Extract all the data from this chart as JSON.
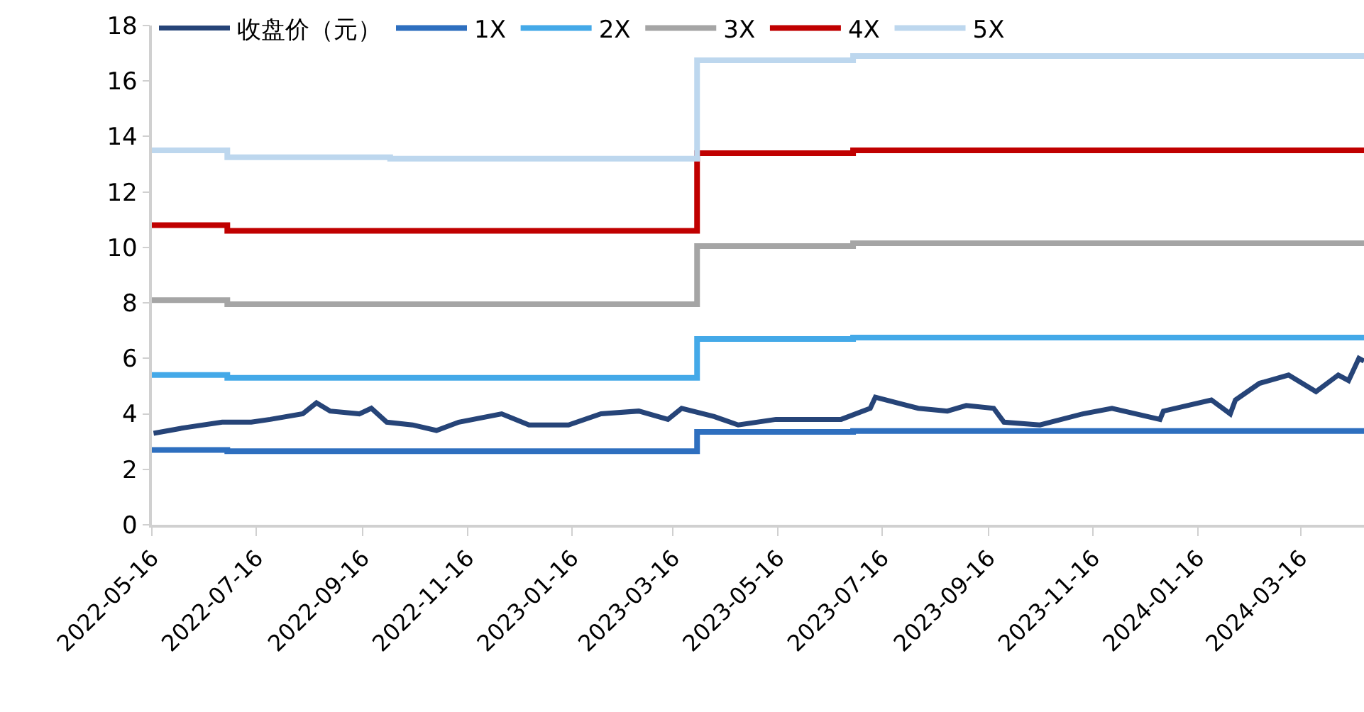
{
  "chart_data": {
    "type": "line",
    "series": [
      {
        "name": "收盘价（元）",
        "color": "#264478",
        "x": [
          "2022-05-17",
          "2022-06-04",
          "2022-06-26",
          "2022-07-13",
          "2022-07-24",
          "2022-08-12",
          "2022-08-20",
          "2022-08-28",
          "2022-09-14",
          "2022-09-21",
          "2022-09-30",
          "2022-10-15",
          "2022-10-29",
          "2022-11-11",
          "2022-12-06",
          "2022-12-22",
          "2023-01-14",
          "2023-02-02",
          "2023-02-24",
          "2023-03-13",
          "2023-03-21",
          "2023-04-09",
          "2023-04-23",
          "2023-05-15",
          "2023-06-22",
          "2023-07-09",
          "2023-07-12",
          "2023-08-06",
          "2023-08-23",
          "2023-09-03",
          "2023-09-19",
          "2023-09-25",
          "2023-10-16",
          "2023-11-10",
          "2023-11-27",
          "2023-12-25",
          "2023-12-27",
          "2024-01-24",
          "2024-02-04",
          "2024-02-07",
          "2024-02-21",
          "2024-03-09",
          "2024-03-25",
          "2024-04-07",
          "2024-04-13",
          "2024-04-19",
          "2024-04-22"
        ],
        "values": [
          3.3,
          3.5,
          3.7,
          3.7,
          3.8,
          4.0,
          4.4,
          4.1,
          4.0,
          4.2,
          3.7,
          3.6,
          3.4,
          3.7,
          4.0,
          3.6,
          3.6,
          4.0,
          4.1,
          3.8,
          4.2,
          3.9,
          3.6,
          3.8,
          3.8,
          4.2,
          4.6,
          4.2,
          4.1,
          4.3,
          4.2,
          3.7,
          3.6,
          4.0,
          4.2,
          3.8,
          4.1,
          4.5,
          4.0,
          4.5,
          5.1,
          5.4,
          4.8,
          5.4,
          5.2,
          6.0,
          5.9
        ]
      },
      {
        "name": "1X",
        "color": "#2e6fbf",
        "type": "step",
        "x": [
          "2022-05-16",
          "2022-06-29",
          "2023-03-30",
          "2023-06-29",
          "2024-04-22"
        ],
        "values": [
          2.7,
          2.65,
          3.35,
          3.38,
          3.38
        ]
      },
      {
        "name": "2X",
        "color": "#44a9e8",
        "type": "step",
        "x": [
          "2022-05-16",
          "2022-06-29",
          "2023-03-30",
          "2023-06-29",
          "2024-04-22"
        ],
        "values": [
          5.4,
          5.3,
          6.7,
          6.75,
          6.75
        ]
      },
      {
        "name": "3X",
        "color": "#a5a5a5",
        "type": "step",
        "x": [
          "2022-05-16",
          "2022-06-29",
          "2023-03-30",
          "2023-06-29",
          "2024-04-22"
        ],
        "values": [
          8.1,
          7.95,
          10.05,
          10.15,
          10.15
        ]
      },
      {
        "name": "4X",
        "color": "#c00000",
        "type": "step",
        "x": [
          "2022-05-16",
          "2022-06-29",
          "2023-03-30",
          "2023-06-29",
          "2024-04-22"
        ],
        "values": [
          10.8,
          10.6,
          13.4,
          13.5,
          13.5
        ]
      },
      {
        "name": "5X",
        "color": "#bdd7ee",
        "type": "step",
        "x": [
          "2022-05-16",
          "2022-06-29",
          "2022-10-02",
          "2023-03-30",
          "2023-06-29",
          "2024-04-22"
        ],
        "values": [
          13.5,
          13.25,
          13.2,
          16.75,
          16.9,
          16.9
        ]
      }
    ],
    "xlim": [
      "2022-05-16",
      "2024-04-22"
    ],
    "xticks": [
      "2022-05-16",
      "2022-07-16",
      "2022-09-16",
      "2022-11-16",
      "2023-01-16",
      "2023-03-16",
      "2023-05-16",
      "2023-07-16",
      "2023-09-16",
      "2023-11-16",
      "2024-01-16",
      "2024-03-16"
    ],
    "ylim": [
      0,
      18
    ],
    "yticks": [
      0,
      2,
      4,
      6,
      8,
      10,
      12,
      14,
      16,
      18
    ],
    "legend": "top left",
    "marker": "none",
    "line_style": "solid"
  }
}
